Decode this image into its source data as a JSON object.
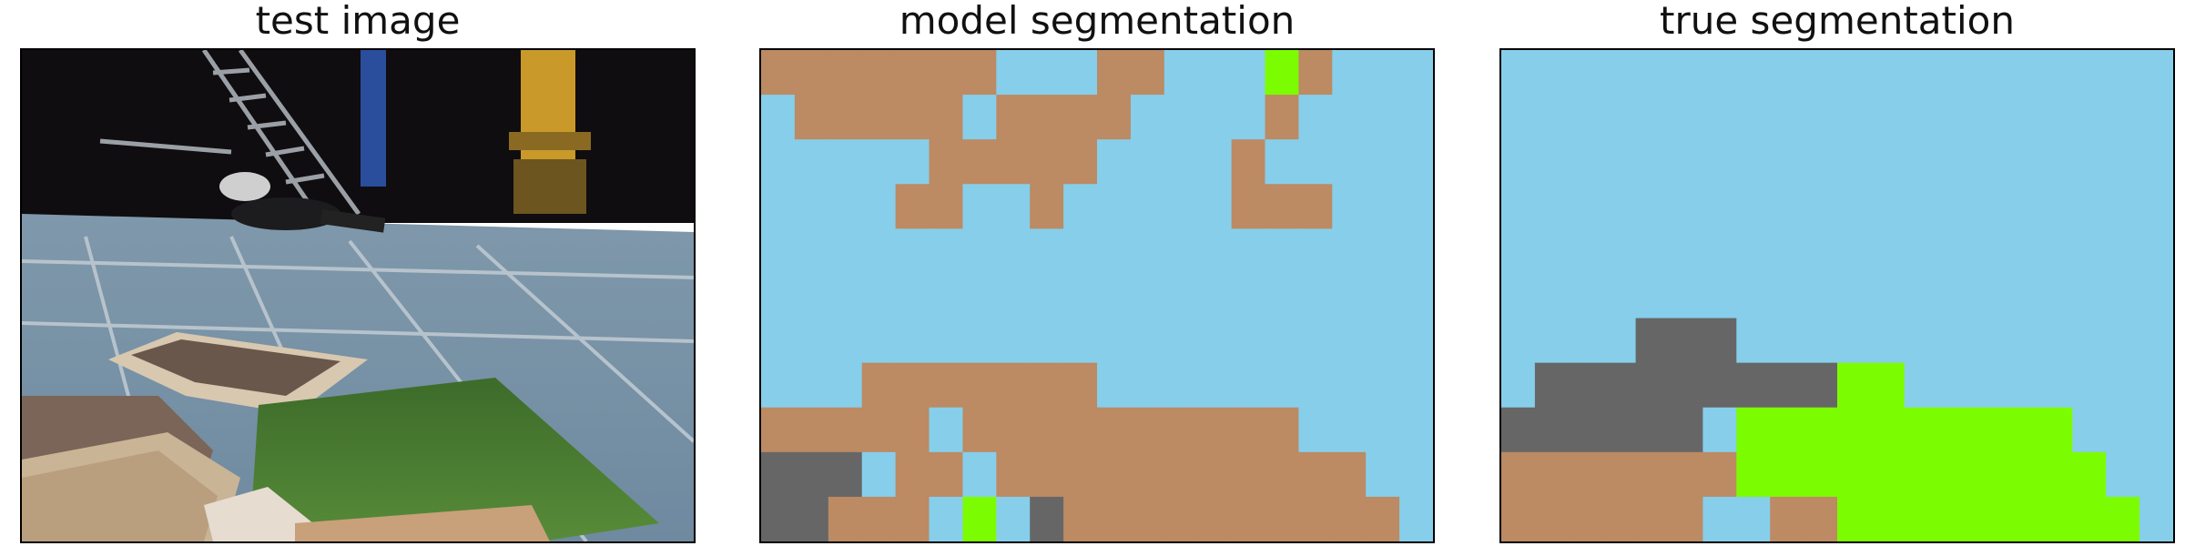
{
  "panels": [
    {
      "title": "test image"
    },
    {
      "title": "model segmentation"
    },
    {
      "title": "true segmentation"
    }
  ],
  "colors": {
    "sky": "#87ceeb",
    "brown": "#bc8a63",
    "green": "#7cfc00",
    "gray": "#666666"
  },
  "grid": {
    "cols": 20,
    "rows": 11
  },
  "model_segmentation": [
    "BBBBBBBSSSBBSSSGBSSS",
    "SBBBBBSBBBBSSSSBSSSS",
    "SSSSSBBBBBSSSSBSSSSS",
    "SSSSBBSSBSSSSSBBBSSS",
    "SSSSSSSSSSSSSSSSSSSS",
    "SSSSSSSSSSSSSSSSSSSS",
    "SSSSSSSSSSSSSSSSSSSS",
    "SSSBBBBBBBSSSSSSSSSS",
    "BBBBBSBBBBBBBBBBSSSS",
    "GGGSBBSBBBBBBBBBBBSS",
    "GGBBBSGSGBBBBBBBBBBS"
  ],
  "true_segmentation": [
    "SSSSSSSSSSSSSSSSSSSS",
    "SSSSSSSSSSSSSSSSSSSS",
    "SSSSSSSSSSSSSSSSSSSS",
    "SSSSSSSSSSSSSSSSSSSS",
    "SSSSSSSSSSSSSSSSSSSS",
    "SSSSSSSSSSSSSSSSSSSS",
    "SSSSGGGSSSSSSSSSSSSS",
    "SGGGGGGGGGGGSSSSSSSS",
    "GGGGGGSGGGGGGGGGGSSS",
    "BBBBBBBGGGGGGGGGGGSS",
    "BBBBBBSSBBGGGGGGGGGS"
  ]
}
